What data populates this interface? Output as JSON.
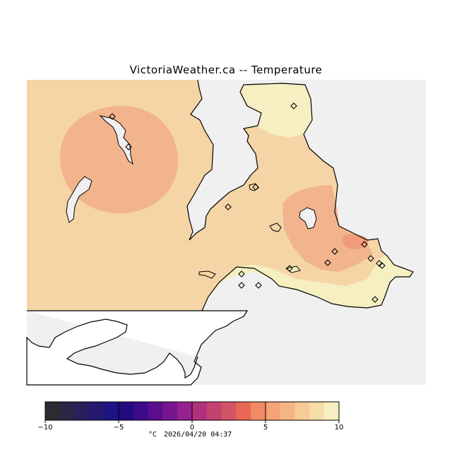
{
  "map": {
    "title": "VictoriaWeather.ca -- Temperature",
    "variable": "Temperature",
    "background_color": "#f0f0f0",
    "station_count": 16
  },
  "legend": {
    "unit": "°C",
    "timestamp": "2026/04/20 04:37",
    "min": -10,
    "max": 10,
    "step": 1,
    "tick_labels": [
      "−10",
      "−5",
      "0",
      "5",
      "10"
    ],
    "colors": [
      "#2e2a31",
      "#2c2545",
      "#291f5b",
      "#241870",
      "#1d1485",
      "#240a82",
      "#3c0a8a",
      "#5a0e8c",
      "#771591",
      "#97208f",
      "#b1307d",
      "#c34270",
      "#d25565",
      "#e86855",
      "#f28a65",
      "#f5a277",
      "#f6b585",
      "#f6cb97",
      "#f5dea8",
      "#f5efc1"
    ]
  }
}
